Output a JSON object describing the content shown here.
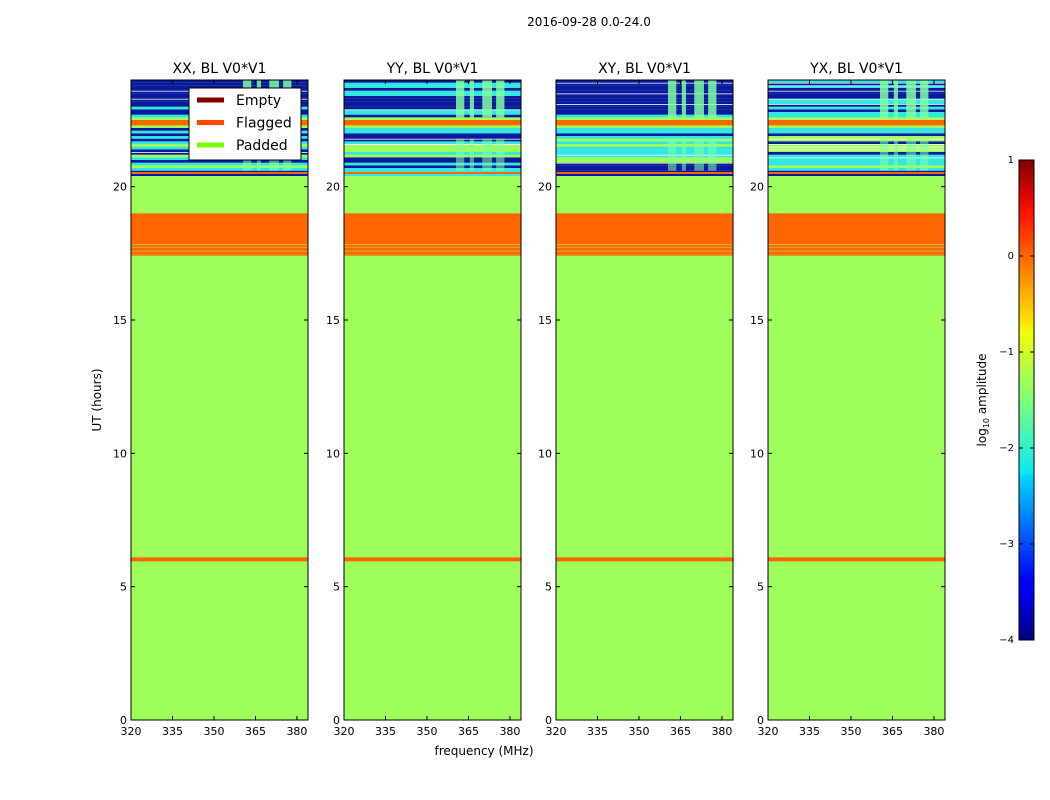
{
  "figure": {
    "suptitle": "2016-09-28 0.0-24.0"
  },
  "colors": {
    "padded": "#9eff5a",
    "flagged": "#ff6600",
    "empty": "#800000",
    "noise": "#0a1aa0",
    "band": "#33e6e6",
    "rfi": "#7fffa0"
  },
  "chart_data": {
    "type": "heatmap",
    "xlabel": "frequency (MHz)",
    "ylabel": "UT (hours)",
    "xlim": [
      320,
      384
    ],
    "ylim": [
      0,
      24
    ],
    "xticks": [
      320,
      335,
      350,
      365,
      380
    ],
    "yticks": [
      0,
      5,
      10,
      15,
      20
    ],
    "panels": [
      {
        "title": "XX, BL V0*V1",
        "noisy_region": [
          20.4,
          24
        ]
      },
      {
        "title": "YY, BL V0*V1",
        "noisy_region": [
          20.4,
          24
        ]
      },
      {
        "title": "XY, BL V0*V1",
        "noisy_region": [
          20.4,
          24
        ]
      },
      {
        "title": "YX, BL V0*V1",
        "noisy_region": [
          20.4,
          24
        ]
      }
    ],
    "flagged_intervals": [
      [
        5.95,
        6.1
      ],
      [
        17.4,
        19.0
      ],
      [
        22.3,
        22.5
      ]
    ],
    "rfi_channels": [
      [
        360.5,
        363.5
      ],
      [
        365.5,
        367.0
      ],
      [
        370.0,
        373.5
      ],
      [
        375.0,
        378.0
      ]
    ],
    "legend": {
      "position": "upper-right",
      "entries": [
        {
          "label": "Empty",
          "color": "#800000"
        },
        {
          "label": "Flagged",
          "color": "#ff4400"
        },
        {
          "label": "Padded",
          "color": "#7cfc00"
        }
      ]
    },
    "colorbar": {
      "label_base": "log",
      "label_sub": "10",
      "label_rest": " amplitude",
      "range": [
        -4,
        1
      ],
      "ticks": [
        {
          "value": 1,
          "label": "1"
        },
        {
          "value": 0,
          "label": "0"
        },
        {
          "value": -1,
          "label": "−1"
        },
        {
          "value": -2,
          "label": "−2"
        },
        {
          "value": -3,
          "label": "−3"
        },
        {
          "value": -4,
          "label": "−4"
        }
      ]
    }
  }
}
